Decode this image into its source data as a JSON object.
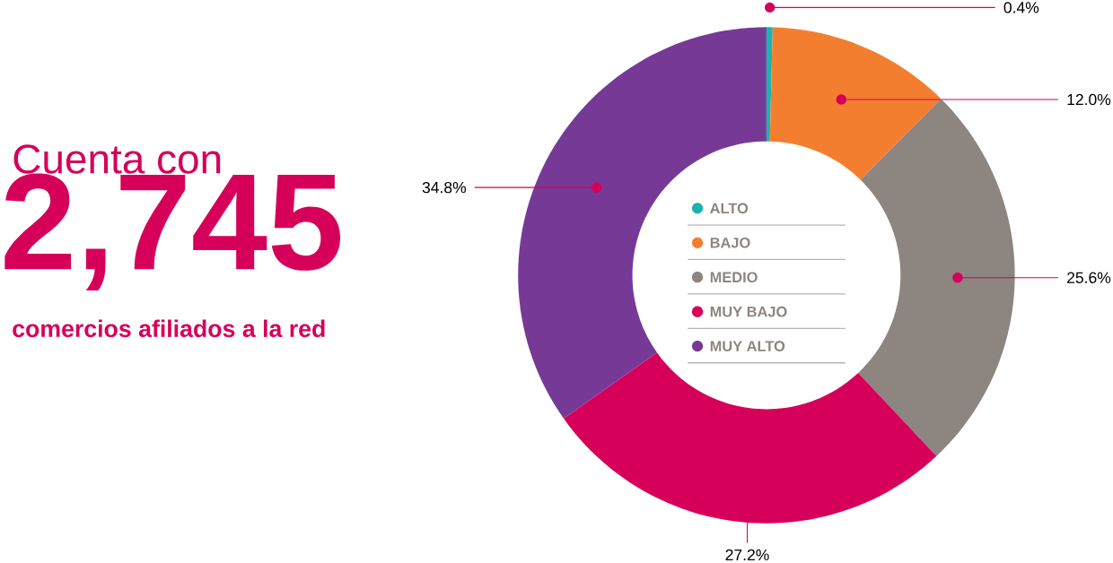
{
  "chart_data": {
    "type": "donut",
    "categories": [
      "ALTO",
      "BAJO",
      "MEDIO",
      "MUY BAJO",
      "MUY ALTO"
    ],
    "values": [
      0.4,
      12.0,
      25.6,
      27.2,
      34.8
    ],
    "colors": [
      "#1bb3b0",
      "#f47e30",
      "#8c8580",
      "#d6005a",
      "#763a96"
    ],
    "value_labels": [
      "0.4%",
      "12.0%",
      "25.6%",
      "27.2%",
      "34.8%"
    ],
    "legend": "center",
    "annotations": [
      "Cuenta con",
      "2,745",
      "comercios afiliados a la red"
    ]
  }
}
